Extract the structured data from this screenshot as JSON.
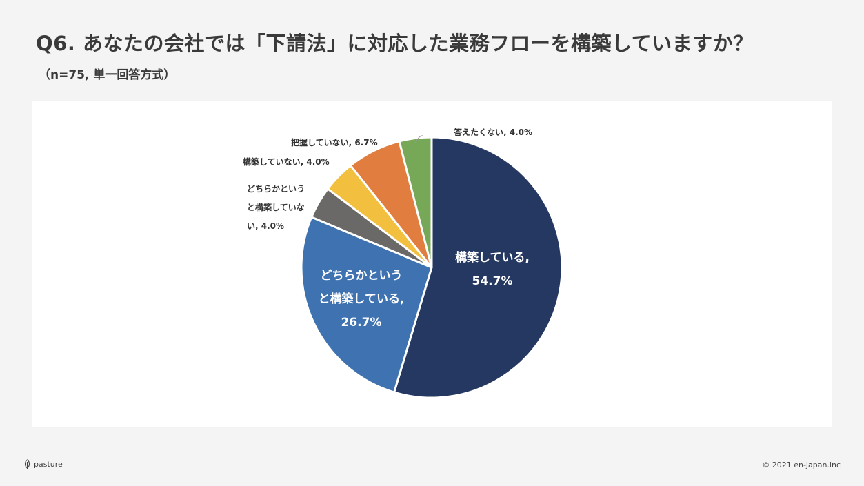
{
  "header": {
    "title": "Q6. あなたの会社では「下請法」に対応した業務フローを構築していますか？",
    "subtitle": "（n=75, 単一回答方式）"
  },
  "chart_data": {
    "type": "pie",
    "title": "",
    "start_angle_deg": 0,
    "direction": "clockwise",
    "slices": [
      {
        "name": "構築している",
        "value": 54.7,
        "pct_label": "54.7%",
        "color": "#253861",
        "label_lines": [
          "構築している,",
          "54.7%"
        ]
      },
      {
        "name": "どちらかというと構築している",
        "value": 26.7,
        "pct_label": "26.7%",
        "color": "#3f72b0",
        "label_lines": [
          "どちらかという",
          "と構築している,",
          "26.7%"
        ]
      },
      {
        "name": "どちらかというと構築していない",
        "value": 4.0,
        "pct_label": "4.0%",
        "color": "#6b6868",
        "label_lines": [
          "どちらかという",
          "と構築していな",
          "い, 4.0%"
        ]
      },
      {
        "name": "構築していない",
        "value": 4.0,
        "pct_label": "4.0%",
        "color": "#f3bf3f",
        "label_lines": [
          "構築していない, 4.0%"
        ]
      },
      {
        "name": "把握していない",
        "value": 6.7,
        "pct_label": "6.7%",
        "color": "#e17d3e",
        "label_lines": [
          "把握していない, 6.7%"
        ]
      },
      {
        "name": "答えたくない",
        "value": 4.0,
        "pct_label": "4.0%",
        "color": "#77a857",
        "label_lines": [
          "答えたくない, 4.0%"
        ]
      }
    ]
  },
  "footer": {
    "logo_text": "pasture",
    "copyright": "© 2021 en-japan.inc",
    "logo_icon": "leaf-icon"
  }
}
